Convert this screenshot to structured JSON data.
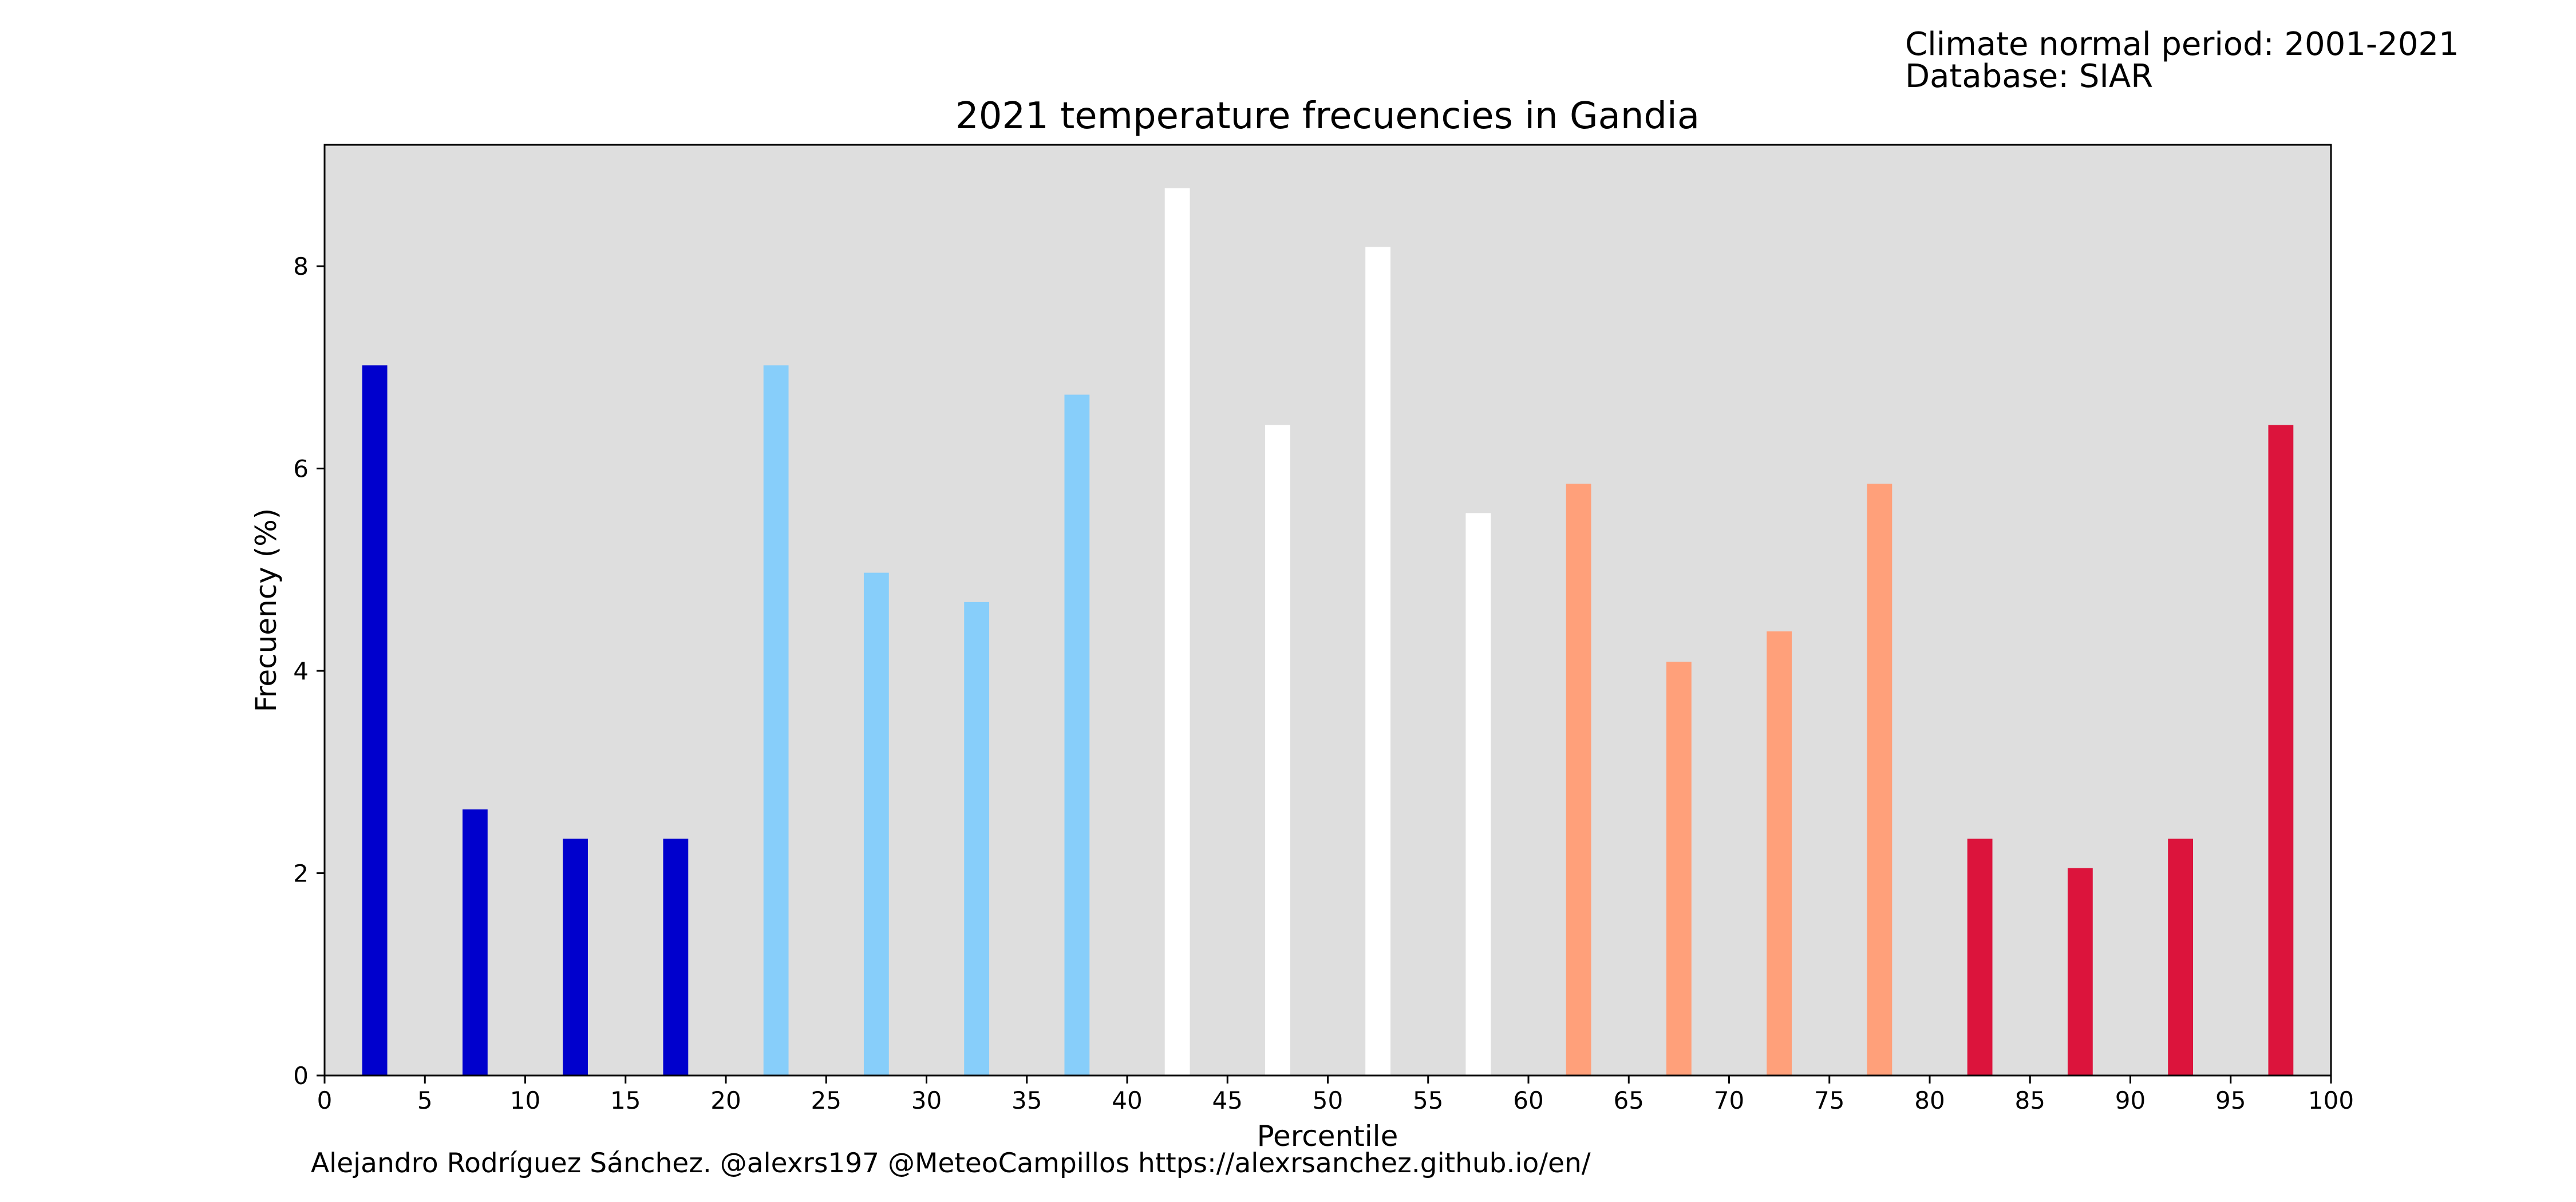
{
  "info": {
    "period": "Climate normal period: 2001-2021",
    "database": "Database: SIAR"
  },
  "footer": {
    "author": "Alejandro Rodríguez Sánchez. @alexrs197 @MeteoCampillos",
    "url": "https://alexrsanchez.github.io/en/"
  },
  "colors": {
    "plot_background": "#dedede",
    "very_cold": "#0000cd",
    "cold": "#87cefa",
    "normal": "#ffffff",
    "warm": "#ffa07a",
    "very_warm": "#dc143c"
  },
  "chart_data": {
    "type": "bar",
    "title": "2021 temperature frecuencies in Gandia",
    "xlabel": "Percentile",
    "ylabel": "Frecuency (%)",
    "xlim": [
      0,
      100
    ],
    "ylim": [
      0,
      9.2
    ],
    "x_ticks": [
      "0",
      "5",
      "10",
      "15",
      "20",
      "25",
      "30",
      "35",
      "40",
      "45",
      "50",
      "55",
      "60",
      "65",
      "70",
      "75",
      "80",
      "85",
      "90",
      "95",
      "100"
    ],
    "y_ticks": [
      "0",
      "2",
      "4",
      "6",
      "8"
    ],
    "grid": false,
    "legend": "none",
    "bar_width": 1.25,
    "bars": [
      {
        "x": 2.5,
        "value": 7.02,
        "color": "#0000cd"
      },
      {
        "x": 7.5,
        "value": 2.63,
        "color": "#0000cd"
      },
      {
        "x": 12.5,
        "value": 2.34,
        "color": "#0000cd"
      },
      {
        "x": 17.5,
        "value": 2.34,
        "color": "#0000cd"
      },
      {
        "x": 22.5,
        "value": 7.02,
        "color": "#87cefa"
      },
      {
        "x": 27.5,
        "value": 4.97,
        "color": "#87cefa"
      },
      {
        "x": 32.5,
        "value": 4.68,
        "color": "#87cefa"
      },
      {
        "x": 37.5,
        "value": 6.73,
        "color": "#87cefa"
      },
      {
        "x": 42.5,
        "value": 8.77,
        "color": "#ffffff"
      },
      {
        "x": 47.5,
        "value": 6.43,
        "color": "#ffffff"
      },
      {
        "x": 52.5,
        "value": 8.19,
        "color": "#ffffff"
      },
      {
        "x": 57.5,
        "value": 5.56,
        "color": "#ffffff"
      },
      {
        "x": 62.5,
        "value": 5.85,
        "color": "#ffa07a"
      },
      {
        "x": 67.5,
        "value": 4.09,
        "color": "#ffa07a"
      },
      {
        "x": 72.5,
        "value": 4.39,
        "color": "#ffa07a"
      },
      {
        "x": 77.5,
        "value": 5.85,
        "color": "#ffa07a"
      },
      {
        "x": 82.5,
        "value": 2.34,
        "color": "#dc143c"
      },
      {
        "x": 87.5,
        "value": 2.05,
        "color": "#dc143c"
      },
      {
        "x": 92.5,
        "value": 2.34,
        "color": "#dc143c"
      },
      {
        "x": 97.5,
        "value": 6.43,
        "color": "#dc143c"
      }
    ]
  }
}
